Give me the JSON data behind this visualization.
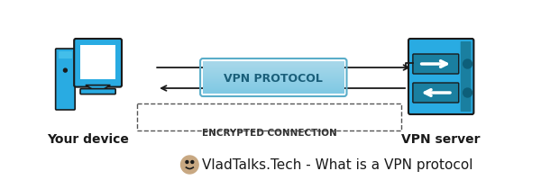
{
  "bg_color": "#ffffff",
  "title_text": "VladTalks.Tech - What is a VPN protocol",
  "title_fontsize": 11,
  "device_label": "Your device",
  "server_label": "VPN server",
  "protocol_label": "VPN PROTOCOL",
  "encrypted_label": "ENCRYPTED CONNECTION",
  "device_color": "#29abe2",
  "server_color": "#29abe2",
  "protocol_pill_color_top": "#d6eef8",
  "protocol_pill_color_bottom": "#7ec8e3",
  "protocol_pill_stroke": "#5aadc9",
  "arrow_color": "#1a1a1a",
  "dotted_line_color": "#555555",
  "label_fontsize": 9,
  "protocol_fontsize": 9
}
